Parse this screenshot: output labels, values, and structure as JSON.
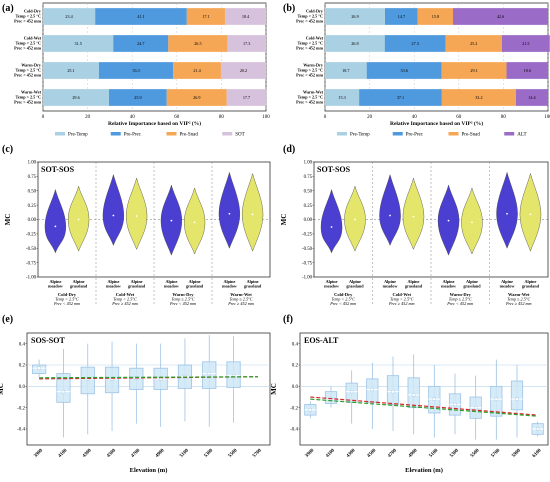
{
  "panel_labels": [
    "(a)",
    "(b)",
    "(c)",
    "(d)",
    "(e)",
    "(f)"
  ],
  "colors": {
    "Pre-Temp": "#aad0e3",
    "Pre-Prec": "#4f9ade",
    "Pre-Snad": "#f6a756",
    "SOT": "#d6c2dc",
    "ALT": "#9a6bc7",
    "violin_meadow": "#4a3fd1",
    "violin_grassland": "#e4e56b",
    "box_fill": "#cfe7f7",
    "box_edge": "#9dc3e6",
    "trend_red": "#d62728",
    "trend_green": "#2ca02c"
  },
  "chart_data": [
    {
      "panel": "(a)",
      "type": "bar",
      "orientation": "horizontal",
      "stacked": true,
      "categories": [
        [
          "Cold-Dry",
          "Temp < 2.5 °C",
          "Prec < 452 mm"
        ],
        [
          "Cold-Wet",
          "Temp < 2.5 °C",
          "Prec > 452 mm"
        ],
        [
          "Warm-Dry",
          "Temp > 2.5 °C",
          "Prec < 452 mm"
        ],
        [
          "Warm-Wet",
          "Temp > 2.5 °C",
          "Prec > 452 mm"
        ]
      ],
      "series": [
        {
          "name": "Pre-Temp",
          "values": [
            23.4,
            31.5,
            25.1,
            29.6
          ]
        },
        {
          "name": "Pre-Prec",
          "values": [
            41.1,
            24.7,
            33.3,
            25.9
          ]
        },
        {
          "name": "Pre-Snad",
          "values": [
            17.1,
            26.5,
            21.4,
            26.9
          ]
        },
        {
          "name": "SOT",
          "values": [
            18.4,
            17.3,
            20.2,
            17.7
          ]
        }
      ],
      "xlabel": "Relative Importance based on VIP² (%)",
      "xlim": [
        0,
        100
      ],
      "xticks": [
        0,
        20,
        40,
        60,
        80,
        100
      ],
      "legend_position": "bottom"
    },
    {
      "panel": "(b)",
      "type": "bar",
      "orientation": "horizontal",
      "stacked": true,
      "categories": [
        [
          "Cold-Dry",
          "Temp < 2.5 °C",
          "Prec < 452 mm"
        ],
        [
          "Cold-Wet",
          "Temp < 2.5 °C",
          "Prec > 452 mm"
        ],
        [
          "Warm-Dry",
          "Temp > 2.5 °C",
          "Prec < 452 mm"
        ],
        [
          "Warm-Wet",
          "Temp > 2.5 °C",
          "Prec > 452 mm"
        ]
      ],
      "series": [
        {
          "name": "Pre-Temp",
          "values": [
            26.9,
            26.8,
            18.7,
            15.3
          ]
        },
        {
          "name": "Pre-Prec",
          "values": [
            14.7,
            27.3,
            33.6,
            37.1
          ]
        },
        {
          "name": "Pre-Snad",
          "values": [
            15.8,
            25.2,
            29.1,
            33.2
          ]
        },
        {
          "name": "ALT",
          "values": [
            42.6,
            21.5,
            18.6,
            14.4
          ]
        }
      ],
      "xlabel": "Relative Importance based on VIP² (%)",
      "xlim": [
        0,
        100
      ],
      "xticks": [
        0,
        20,
        40,
        60,
        80,
        100
      ],
      "legend_position": "bottom"
    },
    {
      "panel": "(c)",
      "type": "violin",
      "inner_title": "SOT-SOS",
      "ylabel": "MC",
      "ylim": [
        -1.0,
        1.0
      ],
      "yticks": [
        -1.0,
        -0.75,
        -0.5,
        -0.25,
        0.0,
        0.25,
        0.5,
        0.75,
        1.0
      ],
      "reference_line": 0.0,
      "groups": [
        {
          "name": "Cold-Dry",
          "temp": "Temp < 2.5°C",
          "prec": "Prec < 452 mm"
        },
        {
          "name": "Cold-Wet",
          "temp": "Temp < 2.5°C",
          "prec": "Prec ≥ 452 mm"
        },
        {
          "name": "Warm-Dry",
          "temp": "Temp ≥ 2.5°C",
          "prec": "Prec < 452 mm"
        },
        {
          "name": "Warm-Wet",
          "temp": "Temp ≥ 2.5°C",
          "prec": "Prec ≥ 452 mm"
        }
      ],
      "x_pair_labels": [
        [
          "Alpine",
          "meadow"
        ],
        [
          "Alpine",
          "grassland"
        ]
      ],
      "medians": [
        [
          -0.12,
          0.0
        ],
        [
          0.07,
          0.06
        ],
        [
          -0.02,
          -0.05
        ],
        [
          0.1,
          0.09
        ]
      ],
      "ranges": [
        [
          [
            -0.58,
            0.52
          ],
          [
            -0.55,
            0.58
          ]
        ],
        [
          [
            -0.45,
            0.78
          ],
          [
            -0.52,
            0.72
          ]
        ],
        [
          [
            -0.62,
            0.6
          ],
          [
            -0.6,
            0.55
          ]
        ],
        [
          [
            -0.5,
            0.82
          ],
          [
            -0.55,
            0.8
          ]
        ]
      ]
    },
    {
      "panel": "(d)",
      "type": "violin",
      "inner_title": "SOT-SOS",
      "ylabel": "MC",
      "ylim": [
        -1.0,
        1.0
      ],
      "yticks": [
        -1.0,
        -0.75,
        -0.5,
        -0.25,
        0.0,
        0.25,
        0.5,
        0.75,
        1.0
      ],
      "reference_line": 0.0,
      "groups": [
        {
          "name": "Cold-Dry",
          "temp": "Temp < 2.5°C",
          "prec": "Prec < 452 mm"
        },
        {
          "name": "Cold-Wet",
          "temp": "Temp < 2.5°C",
          "prec": "Prec ≥ 452 mm"
        },
        {
          "name": "Warm-Dry",
          "temp": "Temp ≥ 2.5°C",
          "prec": "Prec < 452 mm"
        },
        {
          "name": "Warm-Wet",
          "temp": "Temp ≥ 2.5°C",
          "prec": "Prec ≥ 452 mm"
        }
      ],
      "x_pair_labels": [
        [
          "Alpine",
          "meadow"
        ],
        [
          "Alpine",
          "grassland"
        ]
      ],
      "medians": [
        [
          -0.13,
          0.0
        ],
        [
          0.07,
          0.05
        ],
        [
          -0.02,
          -0.05
        ],
        [
          0.1,
          0.09
        ]
      ],
      "ranges": [
        [
          [
            -0.58,
            0.52
          ],
          [
            -0.55,
            0.58
          ]
        ],
        [
          [
            -0.45,
            0.78
          ],
          [
            -0.52,
            0.72
          ]
        ],
        [
          [
            -0.62,
            0.6
          ],
          [
            -0.6,
            0.55
          ]
        ],
        [
          [
            -0.5,
            0.82
          ],
          [
            -0.55,
            0.8
          ]
        ]
      ]
    },
    {
      "panel": "(e)",
      "type": "box",
      "inner_title": "SOS-SOT",
      "xlabel": "Elevation (m)",
      "ylabel": "MC",
      "ylim": [
        -0.55,
        0.5
      ],
      "yticks": [
        -0.4,
        -0.2,
        0.0,
        0.2,
        0.4
      ],
      "reference_lines": [
        0.0,
        0.2
      ],
      "categories": [
        "3900",
        "4100",
        "4300",
        "4500",
        "4700",
        "4900",
        "5100",
        "5300",
        "5500",
        "5700"
      ],
      "boxes": [
        {
          "q1": 0.12,
          "median": 0.17,
          "q3": 0.2,
          "wlo": 0.08,
          "whi": 0.25
        },
        {
          "q1": -0.15,
          "median": -0.05,
          "q3": 0.12,
          "wlo": -0.48,
          "whi": 0.35
        },
        {
          "q1": -0.07,
          "median": 0.07,
          "q3": 0.18,
          "wlo": -0.45,
          "whi": 0.4
        },
        {
          "q1": -0.06,
          "median": 0.07,
          "q3": 0.18,
          "wlo": -0.42,
          "whi": 0.42
        },
        {
          "q1": -0.03,
          "median": 0.08,
          "q3": 0.17,
          "wlo": -0.35,
          "whi": 0.4
        },
        {
          "q1": -0.03,
          "median": 0.07,
          "q3": 0.17,
          "wlo": -0.38,
          "whi": 0.4
        },
        {
          "q1": -0.02,
          "median": 0.09,
          "q3": 0.2,
          "wlo": -0.33,
          "whi": 0.45
        },
        {
          "q1": -0.02,
          "median": 0.12,
          "q3": 0.23,
          "wlo": -0.38,
          "whi": 0.48
        },
        {
          "q1": -0.01,
          "median": 0.1,
          "q3": 0.23,
          "wlo": -0.34,
          "whi": 0.47
        },
        {
          "q1": null,
          "median": null,
          "q3": null,
          "wlo": null,
          "whi": null
        }
      ],
      "trend_lines": [
        {
          "color": "trend_red",
          "style": "dashed",
          "y_start": 0.07,
          "y_end": 0.09
        },
        {
          "color": "trend_green",
          "style": "dashed",
          "y_start": 0.08,
          "y_end": 0.09
        }
      ]
    },
    {
      "panel": "(f)",
      "type": "box",
      "inner_title": "EOS-ALT",
      "xlabel": "Elevation (m)",
      "ylabel": "MC",
      "ylim": [
        -0.55,
        0.5
      ],
      "yticks": [
        -0.4,
        -0.2,
        0.0,
        0.2,
        0.4
      ],
      "reference_lines": [
        0.0,
        0.2
      ],
      "categories": [
        "3900",
        "4100",
        "4300",
        "4500",
        "4700",
        "4900",
        "5100",
        "5300",
        "5500",
        "5700",
        "5900",
        "6100"
      ],
      "boxes": [
        {
          "q1": -0.27,
          "median": -0.22,
          "q3": -0.17,
          "wlo": -0.3,
          "whi": -0.14
        },
        {
          "q1": -0.16,
          "median": -0.12,
          "q3": -0.05,
          "wlo": -0.2,
          "whi": 0.0
        },
        {
          "q1": -0.15,
          "median": -0.05,
          "q3": 0.03,
          "wlo": -0.35,
          "whi": 0.15
        },
        {
          "q1": -0.15,
          "median": -0.03,
          "q3": 0.07,
          "wlo": -0.4,
          "whi": 0.22
        },
        {
          "q1": -0.17,
          "median": -0.05,
          "q3": 0.1,
          "wlo": -0.42,
          "whi": 0.28
        },
        {
          "q1": -0.2,
          "median": -0.08,
          "q3": 0.08,
          "wlo": -0.45,
          "whi": 0.3
        },
        {
          "q1": -0.25,
          "median": -0.12,
          "q3": 0.0,
          "wlo": -0.48,
          "whi": 0.2
        },
        {
          "q1": -0.27,
          "median": -0.17,
          "q3": -0.07,
          "wlo": -0.45,
          "whi": 0.12
        },
        {
          "q1": -0.3,
          "median": -0.2,
          "q3": -0.1,
          "wlo": -0.5,
          "whi": 0.1
        },
        {
          "q1": -0.28,
          "median": -0.12,
          "q3": 0.0,
          "wlo": -0.5,
          "whi": 0.25
        },
        {
          "q1": -0.22,
          "median": -0.12,
          "q3": 0.05,
          "wlo": -0.48,
          "whi": 0.2
        },
        {
          "q1": -0.45,
          "median": -0.4,
          "q3": -0.35,
          "wlo": -0.47,
          "whi": -0.33
        }
      ],
      "trend_lines": [
        {
          "color": "trend_red",
          "style": "dashed",
          "y_start": -0.1,
          "y_end": -0.27
        },
        {
          "color": "trend_green",
          "style": "dashed",
          "y_start": -0.12,
          "y_end": -0.28
        }
      ]
    }
  ]
}
